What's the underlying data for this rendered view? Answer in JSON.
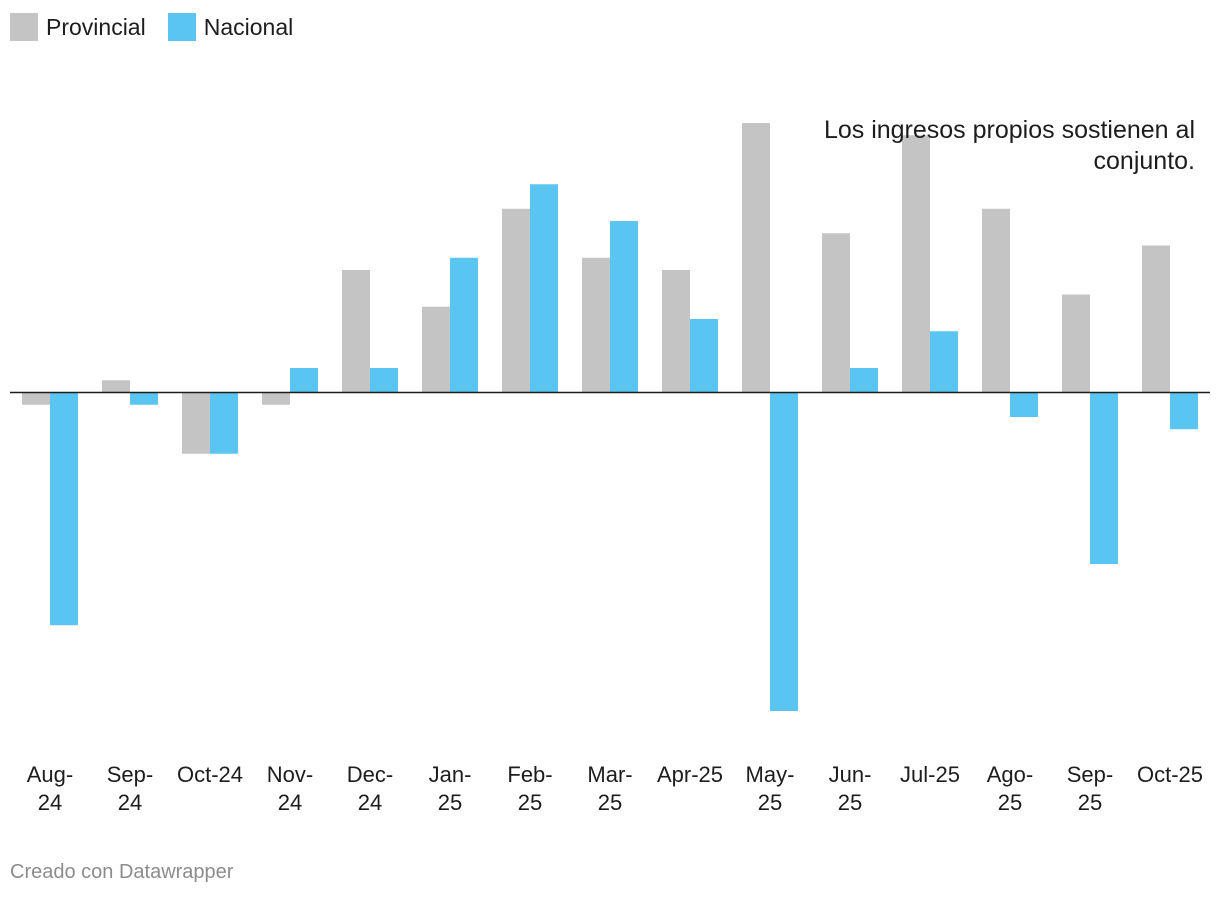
{
  "legend": {
    "provincial_label": "Provincial",
    "nacional_label": "Nacional"
  },
  "footer": {
    "credit": "Creado con Datawrapper"
  },
  "chart_data": {
    "type": "bar",
    "categories": [
      [
        "Aug-",
        "24"
      ],
      [
        "Sep-",
        "24"
      ],
      [
        "Oct-24"
      ],
      [
        "Nov-",
        "24"
      ],
      [
        "Dec-",
        "24"
      ],
      [
        "Jan-",
        "25"
      ],
      [
        "Feb-",
        "25"
      ],
      [
        "Mar-",
        "25"
      ],
      [
        "Apr-25"
      ],
      [
        "May-",
        "25"
      ],
      [
        "Jun-",
        "25"
      ],
      [
        "Jul-25"
      ],
      [
        "Ago-",
        "25"
      ],
      [
        "Sep-",
        "25"
      ],
      [
        "Oct-25"
      ]
    ],
    "series": [
      {
        "name": "Provincial",
        "color": "#c4c4c4",
        "values": [
          -1,
          1,
          -5,
          -1,
          10,
          7,
          15,
          11,
          10,
          22,
          13,
          21,
          15,
          8,
          12
        ]
      },
      {
        "name": "Nacional",
        "color": "#5bc5f2",
        "values": [
          -19,
          -1,
          -5,
          2,
          2,
          11,
          17,
          14,
          6,
          -26,
          2,
          5,
          -2,
          -14,
          -3
        ]
      }
    ],
    "annotation": [
      "Los ingresos propios sostienen al",
      "conjunto."
    ],
    "ylim": [
      -30,
      28
    ],
    "grid": false,
    "legend_position": "top-left"
  }
}
